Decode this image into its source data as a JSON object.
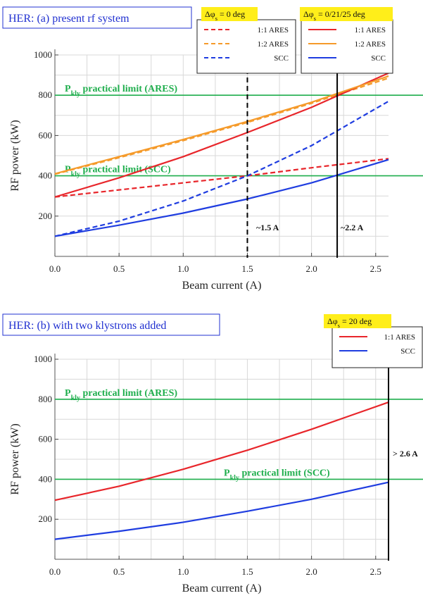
{
  "chart_data": [
    {
      "type": "line",
      "title": "HER: (a) present rf system",
      "xlabel": "Beam current (A)",
      "ylabel": "RF power (kW)",
      "xlim": [
        0,
        2.6
      ],
      "ylim": [
        0,
        1000
      ],
      "xticks": [
        "0.0",
        "0.5",
        "1.0",
        "1.5",
        "2.0",
        "2.5"
      ],
      "yticks": [
        "200",
        "400",
        "600",
        "800",
        "1000"
      ],
      "grid": true,
      "legend_groups": [
        {
          "header_prefix": "Δφ",
          "header_sub": "s",
          "header_suffix": " = 0 deg",
          "entries": [
            "1:1 ARES",
            "1:2 ARES",
            "SCC"
          ]
        },
        {
          "header_prefix": "Δφ",
          "header_sub": "s",
          "header_suffix": " = 0/21/25 deg",
          "entries": [
            "1:1 ARES",
            "1:2 ARES",
            "SCC"
          ]
        }
      ],
      "series": [
        {
          "name": "1:1 ARES",
          "group": 0,
          "color": "#e8262b",
          "dash": true,
          "x": [
            0,
            0.5,
            1.0,
            1.5,
            2.0,
            2.6
          ],
          "y": [
            295,
            330,
            365,
            400,
            440,
            485
          ]
        },
        {
          "name": "1:2 ARES",
          "group": 0,
          "color": "#f59a2a",
          "dash": true,
          "x": [
            0,
            0.5,
            1.0,
            1.5,
            2.0,
            2.6
          ],
          "y": [
            408,
            490,
            575,
            665,
            760,
            885
          ]
        },
        {
          "name": "SCC",
          "group": 0,
          "color": "#1f3de0",
          "dash": true,
          "x": [
            0,
            0.5,
            1.0,
            1.5,
            2.0,
            2.6
          ],
          "y": [
            100,
            175,
            275,
            400,
            550,
            770
          ]
        },
        {
          "name": "1:1 ARES",
          "group": 1,
          "color": "#e8262b",
          "dash": false,
          "x": [
            0,
            0.5,
            1.0,
            1.5,
            2.0,
            2.6
          ],
          "y": [
            295,
            390,
            495,
            615,
            740,
            910
          ]
        },
        {
          "name": "1:2 ARES",
          "group": 1,
          "color": "#f59a2a",
          "dash": false,
          "x": [
            0,
            0.5,
            1.0,
            1.5,
            2.0,
            2.6
          ],
          "y": [
            410,
            495,
            580,
            670,
            765,
            895
          ]
        },
        {
          "name": "SCC",
          "group": 1,
          "color": "#1f3de0",
          "dash": false,
          "x": [
            0,
            0.5,
            1.0,
            1.5,
            2.0,
            2.6
          ],
          "y": [
            100,
            155,
            215,
            285,
            365,
            480
          ]
        }
      ],
      "hlines": [
        {
          "y": 800,
          "label_main": "P",
          "label_sub": "kly",
          "label_rest": " practical limit (ARES)",
          "color": "#1fae4d"
        },
        {
          "y": 400,
          "label_main": "P",
          "label_sub": "kly",
          "label_rest": " practical limit (SCC)",
          "color": "#1fae4d"
        }
      ],
      "vlines": [
        {
          "x": 1.5,
          "label": "~1.5 A",
          "dash": true,
          "color": "#000000"
        },
        {
          "x": 2.2,
          "label": "~2.2 A",
          "dash": false,
          "color": "#000000"
        }
      ]
    },
    {
      "type": "line",
      "title": "HER: (b) with two klystrons added",
      "xlabel": "Beam current (A)",
      "ylabel": "RF power (kW)",
      "xlim": [
        0,
        2.6
      ],
      "ylim": [
        0,
        1000
      ],
      "xticks": [
        "0.0",
        "0.5",
        "1.0",
        "1.5",
        "2.0",
        "2.5"
      ],
      "yticks": [
        "200",
        "400",
        "600",
        "800",
        "1000"
      ],
      "grid": true,
      "legend_groups": [
        {
          "header_prefix": "Δφ",
          "header_sub": "s",
          "header_suffix": " = 20 deg",
          "entries": [
            "1:1 ARES",
            "SCC"
          ]
        }
      ],
      "series": [
        {
          "name": "1:1 ARES",
          "group": 0,
          "color": "#e8262b",
          "dash": false,
          "x": [
            0,
            0.5,
            1.0,
            1.5,
            2.0,
            2.6
          ],
          "y": [
            295,
            365,
            450,
            545,
            650,
            785
          ]
        },
        {
          "name": "SCC",
          "group": 0,
          "color": "#1f3de0",
          "dash": false,
          "x": [
            0,
            0.5,
            1.0,
            1.5,
            2.0,
            2.6
          ],
          "y": [
            100,
            140,
            185,
            240,
            300,
            385
          ]
        }
      ],
      "hlines": [
        {
          "y": 800,
          "label_main": "P",
          "label_sub": "kly",
          "label_rest": " practical limit (ARES)",
          "color": "#1fae4d"
        },
        {
          "y": 400,
          "label_main": "P",
          "label_sub": "kly",
          "label_rest": " practical limit (SCC)",
          "color": "#1fae4d"
        }
      ],
      "vlines": [
        {
          "x": 2.6,
          "label": "> 2.6 A",
          "dash": false,
          "color": "#000000"
        }
      ]
    }
  ]
}
